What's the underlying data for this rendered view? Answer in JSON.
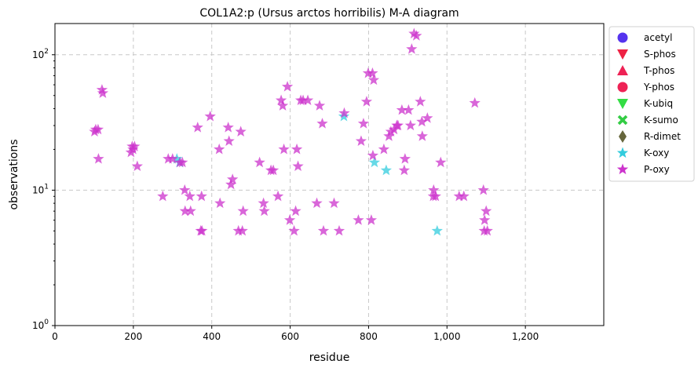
{
  "chart_data": {
    "type": "scatter",
    "title": "COL1A2:p (Ursus arctos horribilis) M-A diagram",
    "xlabel": "residue",
    "ylabel": "observations",
    "xlim": [
      0,
      1400
    ],
    "ylim": [
      1,
      170
    ],
    "yscale": "log",
    "grid": true,
    "legend_position": "outside-right",
    "x_ticks": [
      0,
      200,
      400,
      600,
      800,
      1000,
      1200
    ],
    "x_tick_labels": [
      "0",
      "200",
      "400",
      "600",
      "800",
      "1,000",
      "1,200"
    ],
    "y_ticks": [
      1,
      10,
      100
    ],
    "y_tick_labels": [
      "10^0",
      "10^1",
      "10^2"
    ],
    "legend": [
      {
        "name": "acetyl",
        "marker": "circle",
        "color": "#5533ee"
      },
      {
        "name": "S-phos",
        "marker": "triangle-down",
        "color": "#ee2244"
      },
      {
        "name": "T-phos",
        "marker": "triangle-up",
        "color": "#ee2255"
      },
      {
        "name": "Y-phos",
        "marker": "circle",
        "color": "#ee2255"
      },
      {
        "name": "K-ubiq",
        "marker": "triangle-down",
        "color": "#33dd44"
      },
      {
        "name": "K-sumo",
        "marker": "x",
        "color": "#33cc44"
      },
      {
        "name": "R-dimet",
        "marker": "diamond",
        "color": "#66663c"
      },
      {
        "name": "K-oxy",
        "marker": "star",
        "color": "#33ccdd"
      },
      {
        "name": "P-oxy",
        "marker": "star",
        "color": "#cc33cc"
      }
    ],
    "series": [
      {
        "name": "K-oxy",
        "color": "#33ccdd",
        "points": [
          [
            311,
            17
          ],
          [
            318,
            16
          ],
          [
            737,
            35
          ],
          [
            815,
            16
          ],
          [
            845,
            14
          ],
          [
            975,
            5
          ]
        ]
      },
      {
        "name": "P-oxy",
        "color": "#cc33cc",
        "points": [
          [
            101,
            27
          ],
          [
            104,
            28
          ],
          [
            110,
            28
          ],
          [
            111,
            17
          ],
          [
            120,
            55
          ],
          [
            122,
            52
          ],
          [
            194,
            19
          ],
          [
            197,
            21
          ],
          [
            199,
            20
          ],
          [
            203,
            21
          ],
          [
            210,
            15
          ],
          [
            275,
            9
          ],
          [
            289,
            17
          ],
          [
            300,
            17
          ],
          [
            319,
            16
          ],
          [
            325,
            16
          ],
          [
            331,
            10
          ],
          [
            332,
            7
          ],
          [
            344,
            9
          ],
          [
            346,
            7
          ],
          [
            364,
            29
          ],
          [
            372,
            5
          ],
          [
            374,
            9
          ],
          [
            375,
            5
          ],
          [
            396,
            35
          ],
          [
            419,
            20
          ],
          [
            421,
            8
          ],
          [
            442,
            29
          ],
          [
            444,
            23
          ],
          [
            449,
            11
          ],
          [
            453,
            12
          ],
          [
            468,
            5
          ],
          [
            474,
            27
          ],
          [
            478,
            5
          ],
          [
            480,
            7
          ],
          [
            522,
            16
          ],
          [
            532,
            8
          ],
          [
            534,
            7
          ],
          [
            551,
            14
          ],
          [
            557,
            14
          ],
          [
            569,
            9
          ],
          [
            577,
            46
          ],
          [
            581,
            42
          ],
          [
            584,
            20
          ],
          [
            593,
            58
          ],
          [
            599,
            6
          ],
          [
            610,
            5
          ],
          [
            614,
            7
          ],
          [
            617,
            20
          ],
          [
            620,
            15
          ],
          [
            627,
            46
          ],
          [
            633,
            46
          ],
          [
            645,
            46
          ],
          [
            668,
            8
          ],
          [
            675,
            42
          ],
          [
            682,
            31
          ],
          [
            685,
            5
          ],
          [
            712,
            8
          ],
          [
            725,
            5
          ],
          [
            738,
            37
          ],
          [
            774,
            6
          ],
          [
            781,
            23
          ],
          [
            787,
            31
          ],
          [
            795,
            45
          ],
          [
            799,
            73
          ],
          [
            807,
            6
          ],
          [
            810,
            73
          ],
          [
            811,
            18
          ],
          [
            813,
            65
          ],
          [
            839,
            20
          ],
          [
            852,
            25
          ],
          [
            857,
            27
          ],
          [
            865,
            28
          ],
          [
            872,
            30
          ],
          [
            875,
            30
          ],
          [
            885,
            39
          ],
          [
            891,
            14
          ],
          [
            893,
            17
          ],
          [
            902,
            39
          ],
          [
            907,
            30
          ],
          [
            910,
            110
          ],
          [
            916,
            143
          ],
          [
            922,
            138
          ],
          [
            932,
            45
          ],
          [
            936,
            32
          ],
          [
            937,
            25
          ],
          [
            950,
            34
          ],
          [
            965,
            9
          ],
          [
            966,
            10
          ],
          [
            971,
            9
          ],
          [
            984,
            16
          ],
          [
            1031,
            9
          ],
          [
            1043,
            9
          ],
          [
            1071,
            44
          ],
          [
            1093,
            10
          ],
          [
            1095,
            5
          ],
          [
            1096,
            6
          ],
          [
            1100,
            7
          ],
          [
            1103,
            5
          ]
        ]
      }
    ]
  }
}
